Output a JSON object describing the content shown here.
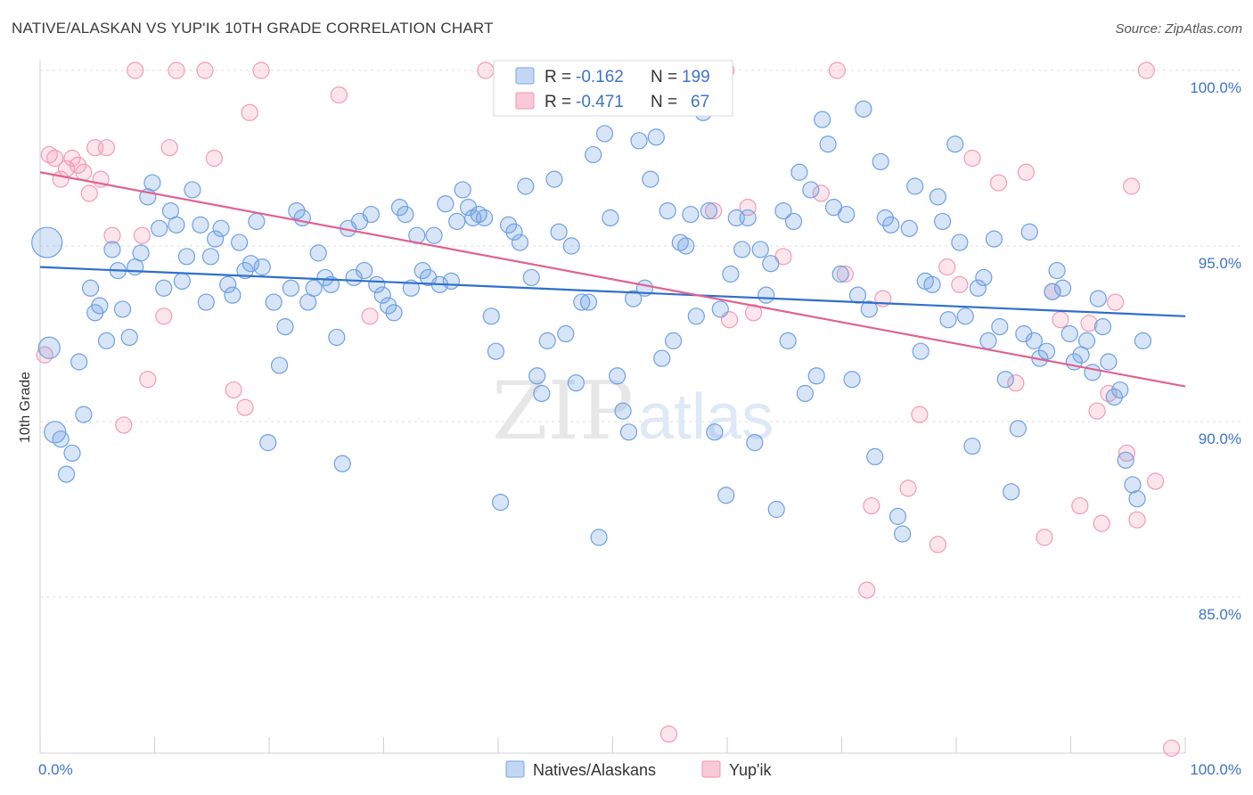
{
  "title": "NATIVE/ALASKAN VS YUP'IK 10TH GRADE CORRELATION CHART",
  "source": "Source: ZipAtlas.com",
  "watermark": {
    "zip": "ZIP",
    "atlas": "atlas"
  },
  "colors": {
    "blue": "#6fa0e3",
    "blue_line": "#2f6fcc",
    "pink": "#f29ab5",
    "pink_line": "#e0628f",
    "tick_text": "#3f73c6"
  },
  "legend": {
    "rows": [
      {
        "r_label": "R =",
        "r_value": "-0.162",
        "n_label": "N =",
        "n_value": "199"
      },
      {
        "r_label": "R =",
        "r_value": "-0.471",
        "n_label": "N =",
        "n_value": "67"
      }
    ]
  },
  "bottom_legend": [
    "Natives/Alaskans",
    "Yup'ik"
  ],
  "chart_data": {
    "type": "scatter",
    "title": "NATIVE/ALASKAN VS YUP'IK 10TH GRADE CORRELATION CHART",
    "xlabel": "",
    "ylabel": "10th Grade",
    "xlim": [
      0,
      100
    ],
    "ylim": [
      80.6,
      101.2
    ],
    "x_tick_labels": [
      "0.0%",
      "100.0%"
    ],
    "y_ticks": [
      85,
      90,
      95,
      100
    ],
    "y_tick_labels": [
      "85.0%",
      "90.0%",
      "95.0%",
      "100.0%"
    ],
    "grid": true,
    "legend_position": "top-center",
    "series": [
      {
        "name": "Natives/Alaskans",
        "color": "#6fa0e3",
        "trend": {
          "x": [
            0,
            100
          ],
          "y": [
            94.4,
            93.0
          ]
        },
        "points": [
          [
            0.6,
            95.1,
            "L"
          ],
          [
            0.8,
            92.1,
            "M"
          ],
          [
            1.3,
            89.7,
            "M"
          ],
          [
            1.8,
            89.5
          ],
          [
            2.3,
            88.5
          ],
          [
            2.8,
            89.1
          ],
          [
            3.4,
            91.7
          ],
          [
            3.8,
            90.2
          ],
          [
            4.4,
            93.8
          ],
          [
            4.8,
            93.1
          ],
          [
            5.2,
            93.3
          ],
          [
            5.8,
            92.3
          ],
          [
            6.3,
            94.9
          ],
          [
            6.8,
            94.3
          ],
          [
            7.2,
            93.2
          ],
          [
            7.8,
            92.4
          ],
          [
            8.3,
            94.4
          ],
          [
            8.8,
            94.8
          ],
          [
            9.4,
            96.4
          ],
          [
            9.8,
            96.8
          ],
          [
            10.4,
            95.5
          ],
          [
            10.8,
            93.8
          ],
          [
            11.4,
            96.0
          ],
          [
            11.9,
            95.6
          ],
          [
            12.4,
            94.0
          ],
          [
            12.8,
            94.7
          ],
          [
            13.3,
            96.6
          ],
          [
            14.0,
            95.6
          ],
          [
            14.5,
            93.4
          ],
          [
            14.9,
            94.7
          ],
          [
            15.3,
            95.2
          ],
          [
            15.8,
            95.5
          ],
          [
            16.4,
            93.9
          ],
          [
            16.8,
            93.6
          ],
          [
            17.4,
            95.1
          ],
          [
            17.9,
            94.3
          ],
          [
            18.4,
            94.5
          ],
          [
            18.9,
            95.7
          ],
          [
            19.4,
            94.4
          ],
          [
            19.9,
            89.4
          ],
          [
            20.4,
            93.4
          ],
          [
            20.9,
            91.6
          ],
          [
            21.4,
            92.7
          ],
          [
            21.9,
            93.8
          ],
          [
            22.4,
            96.0
          ],
          [
            22.9,
            95.8
          ],
          [
            23.4,
            93.4
          ],
          [
            23.9,
            93.8
          ],
          [
            24.3,
            94.8
          ],
          [
            24.9,
            94.1
          ],
          [
            25.4,
            93.9
          ],
          [
            25.9,
            92.4
          ],
          [
            26.4,
            88.8
          ],
          [
            26.9,
            95.5
          ],
          [
            27.4,
            94.1
          ],
          [
            27.9,
            95.7
          ],
          [
            28.3,
            94.3
          ],
          [
            28.9,
            95.9
          ],
          [
            29.4,
            93.9
          ],
          [
            29.9,
            93.6
          ],
          [
            30.4,
            93.3
          ],
          [
            30.9,
            93.1
          ],
          [
            31.4,
            96.1
          ],
          [
            31.9,
            95.9
          ],
          [
            32.4,
            93.8
          ],
          [
            32.9,
            95.3
          ],
          [
            33.4,
            94.3
          ],
          [
            33.9,
            94.1
          ],
          [
            34.4,
            95.3
          ],
          [
            34.9,
            93.9
          ],
          [
            35.4,
            96.2
          ],
          [
            35.9,
            94.0
          ],
          [
            36.4,
            95.7
          ],
          [
            36.9,
            96.6
          ],
          [
            37.4,
            96.1
          ],
          [
            37.8,
            95.8
          ],
          [
            38.3,
            95.9
          ],
          [
            38.8,
            95.8
          ],
          [
            39.4,
            93.0
          ],
          [
            39.8,
            92.0
          ],
          [
            40.2,
            87.7
          ],
          [
            40.9,
            95.6
          ],
          [
            41.4,
            95.4
          ],
          [
            41.9,
            95.1
          ],
          [
            42.4,
            96.7
          ],
          [
            42.9,
            94.1
          ],
          [
            43.4,
            91.3
          ],
          [
            43.8,
            90.8
          ],
          [
            44.3,
            92.3
          ],
          [
            44.9,
            96.9
          ],
          [
            45.3,
            95.4
          ],
          [
            45.9,
            92.5
          ],
          [
            46.4,
            95.0
          ],
          [
            46.8,
            91.1
          ],
          [
            47.3,
            93.4
          ],
          [
            47.9,
            93.4
          ],
          [
            48.3,
            97.6
          ],
          [
            48.8,
            86.7
          ],
          [
            49.3,
            98.2
          ],
          [
            49.8,
            95.8
          ],
          [
            50.4,
            91.3
          ],
          [
            50.9,
            90.3
          ],
          [
            51.4,
            89.7
          ],
          [
            51.8,
            93.5
          ],
          [
            52.3,
            98.0
          ],
          [
            52.8,
            93.8
          ],
          [
            53.3,
            96.9
          ],
          [
            53.8,
            98.1
          ],
          [
            54.3,
            91.8
          ],
          [
            54.8,
            96.0
          ],
          [
            55.3,
            92.3
          ],
          [
            55.9,
            95.1
          ],
          [
            56.4,
            95.0
          ],
          [
            56.8,
            95.9
          ],
          [
            57.3,
            93.0
          ],
          [
            57.9,
            98.8
          ],
          [
            58.4,
            96.0
          ],
          [
            58.9,
            89.7
          ],
          [
            59.4,
            93.2
          ],
          [
            59.9,
            87.9
          ],
          [
            60.3,
            94.2
          ],
          [
            60.8,
            95.8
          ],
          [
            61.3,
            94.9
          ],
          [
            61.8,
            95.8
          ],
          [
            62.4,
            89.4
          ],
          [
            62.9,
            94.9
          ],
          [
            63.4,
            93.6
          ],
          [
            63.8,
            94.5
          ],
          [
            64.3,
            87.5
          ],
          [
            64.9,
            96.0
          ],
          [
            65.3,
            92.3
          ],
          [
            65.8,
            95.7
          ],
          [
            66.3,
            97.1
          ],
          [
            66.8,
            90.8
          ],
          [
            67.3,
            96.6
          ],
          [
            67.8,
            91.3
          ],
          [
            68.3,
            98.6
          ],
          [
            68.8,
            97.9
          ],
          [
            69.3,
            96.1
          ],
          [
            69.9,
            94.2
          ],
          [
            70.4,
            95.9
          ],
          [
            70.9,
            91.2
          ],
          [
            71.4,
            93.6
          ],
          [
            71.9,
            98.9
          ],
          [
            72.4,
            93.2
          ],
          [
            72.9,
            89.0
          ],
          [
            73.4,
            97.4
          ],
          [
            73.8,
            95.8
          ],
          [
            74.3,
            95.6
          ],
          [
            74.9,
            87.3
          ],
          [
            75.3,
            86.8
          ],
          [
            75.9,
            95.5
          ],
          [
            76.4,
            96.7
          ],
          [
            76.9,
            92.0
          ],
          [
            77.3,
            94.0
          ],
          [
            77.9,
            93.9
          ],
          [
            78.4,
            96.4
          ],
          [
            78.8,
            95.7
          ],
          [
            79.3,
            92.9
          ],
          [
            79.9,
            97.9
          ],
          [
            80.3,
            95.1
          ],
          [
            80.8,
            93.0
          ],
          [
            81.4,
            89.3
          ],
          [
            81.9,
            93.8
          ],
          [
            82.4,
            94.1
          ],
          [
            82.8,
            92.3
          ],
          [
            83.3,
            95.2
          ],
          [
            83.8,
            92.7
          ],
          [
            84.3,
            91.2
          ],
          [
            84.8,
            88.0
          ],
          [
            85.4,
            89.8
          ],
          [
            85.9,
            92.5
          ],
          [
            86.4,
            95.4
          ],
          [
            86.8,
            92.3
          ],
          [
            87.3,
            91.8
          ],
          [
            87.9,
            92.0
          ],
          [
            88.4,
            93.7
          ],
          [
            88.8,
            94.3
          ],
          [
            89.3,
            93.8
          ],
          [
            89.9,
            92.5
          ],
          [
            90.3,
            91.7
          ],
          [
            90.9,
            91.9
          ],
          [
            91.4,
            92.3
          ],
          [
            91.9,
            91.4
          ],
          [
            92.4,
            93.5
          ],
          [
            92.8,
            92.7
          ],
          [
            93.3,
            91.7
          ],
          [
            93.8,
            90.7
          ],
          [
            94.3,
            90.9
          ],
          [
            94.8,
            88.9
          ],
          [
            95.4,
            88.2
          ],
          [
            95.8,
            87.8
          ],
          [
            96.3,
            92.3
          ]
        ]
      },
      {
        "name": "Yup'ik",
        "color": "#f29ab5",
        "trend": {
          "x": [
            0,
            100
          ],
          "y": [
            97.1,
            91.0
          ]
        },
        "points": [
          [
            0.4,
            91.9
          ],
          [
            0.8,
            97.6
          ],
          [
            1.3,
            97.5
          ],
          [
            1.8,
            96.9
          ],
          [
            2.3,
            97.2
          ],
          [
            2.8,
            97.5
          ],
          [
            3.3,
            97.3
          ],
          [
            3.8,
            97.1
          ],
          [
            4.3,
            96.5
          ],
          [
            4.8,
            97.8
          ],
          [
            5.3,
            96.9
          ],
          [
            5.8,
            97.8
          ],
          [
            6.3,
            95.3
          ],
          [
            7.3,
            89.9
          ],
          [
            8.3,
            100.0
          ],
          [
            8.9,
            95.3
          ],
          [
            9.4,
            91.2
          ],
          [
            10.8,
            93.0
          ],
          [
            11.3,
            97.8
          ],
          [
            11.9,
            100.0
          ],
          [
            14.4,
            100.0
          ],
          [
            15.2,
            97.5
          ],
          [
            16.9,
            90.9
          ],
          [
            17.9,
            90.4
          ],
          [
            18.3,
            98.8
          ],
          [
            19.3,
            100.0
          ],
          [
            26.1,
            99.3
          ],
          [
            28.8,
            93.0
          ],
          [
            38.9,
            100.0
          ],
          [
            54.9,
            81.1
          ],
          [
            58.8,
            96.0
          ],
          [
            59.9,
            100.0
          ],
          [
            60.2,
            92.9
          ],
          [
            61.8,
            96.1
          ],
          [
            62.3,
            93.1
          ],
          [
            64.9,
            94.7
          ],
          [
            68.2,
            96.5
          ],
          [
            69.6,
            100.0
          ],
          [
            70.3,
            94.2
          ],
          [
            72.2,
            85.2
          ],
          [
            72.6,
            87.6
          ],
          [
            73.6,
            93.5
          ],
          [
            75.8,
            88.1
          ],
          [
            76.8,
            90.2
          ],
          [
            78.4,
            86.5
          ],
          [
            79.2,
            94.4
          ],
          [
            80.3,
            93.9
          ],
          [
            81.4,
            97.5
          ],
          [
            83.7,
            96.8
          ],
          [
            85.2,
            91.1
          ],
          [
            86.1,
            97.1
          ],
          [
            87.7,
            86.7
          ],
          [
            88.4,
            93.7
          ],
          [
            89.1,
            92.9
          ],
          [
            90.8,
            87.6
          ],
          [
            91.6,
            92.8
          ],
          [
            92.3,
            90.3
          ],
          [
            92.7,
            87.1
          ],
          [
            93.3,
            90.8
          ],
          [
            93.9,
            93.4
          ],
          [
            94.9,
            89.1
          ],
          [
            95.3,
            96.7
          ],
          [
            95.8,
            87.2
          ],
          [
            96.6,
            100.0
          ],
          [
            97.4,
            88.3
          ],
          [
            98.8,
            80.7
          ]
        ]
      }
    ]
  }
}
